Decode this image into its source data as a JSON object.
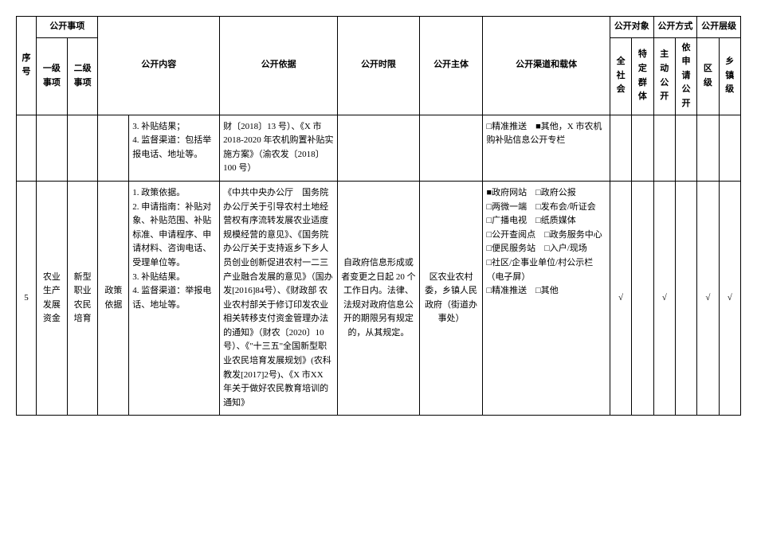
{
  "header": {
    "seq": "序号",
    "matter": "公开事项",
    "l1": "一级事项",
    "l2": "二级事项",
    "content": "公开内容",
    "basis": "公开依据",
    "time": "公开时限",
    "body": "公开主体",
    "channel": "公开渠道和载体",
    "object": "公开对象",
    "obj1": "全社会",
    "obj2": "特定群体",
    "way": "公开方式",
    "way1": "主动公开",
    "way2": "依申请公开",
    "level": "公开层级",
    "lvl1": "区级",
    "lvl2": "乡镇级"
  },
  "row1": {
    "content": "3. 补贴结果；\n4. 监督渠道：包括举报电话、地址等。",
    "basis": "财〔2018〕13 号）、《X 市2018-2020 年农机购置补贴实施方案》（渝农发〔2018〕100 号）",
    "channel": "□精准推送　■其他，X 市农机购补贴信息公开专栏"
  },
  "row2": {
    "seq": "5",
    "l1": "农业生产发展资金",
    "l2": "新型职业农民培育",
    "l3": "政策依据",
    "content": "1. 政策依据。\n2. 申请指南：补贴对象、补贴范围、补贴标准、申请程序、申请材料、咨询电话、受理单位等。\n3. 补贴结果。\n4. 监督渠道：举报电话、地址等。",
    "basis": "《中共中央办公厅　国务院办公厅关于引导农村土地经营权有序流转发展农业适度规模经营的意见》、《国务院办公厅关于支持返乡下乡人员创业创新促进农村一二三产业融合发展的意见》（国办发[2016]84号）、《财政部 农业农村部关于修订印发农业相关转移支付资金管理办法的通知》（财农〔2020〕10 号）、《\"十三五\"全国新型职业农民培育发展规划》(农科教发[2017]2号)、《X 市XX 年关于做好农民教育培训的通知》",
    "time": "自政府信息形成或者变更之日起 20 个工作日内。法律、法规对政府信息公开的期限另有规定的，从其规定。",
    "body": "区农业农村委，乡镇人民政府（街道办事处）",
    "channel": "■政府网站　□政府公报\n□两微一端　□发布会/听证会\n□广播电视　□纸质媒体\n□公开查阅点　□政务服务中心\n□便民服务站　□入户/现场\n□社区/企事业单位/村公示栏（电子屏）\n□精准推送　□其他",
    "obj1": "√",
    "obj2": "",
    "way1": "√",
    "way2": "",
    "lvl1": "√",
    "lvl2": "√"
  }
}
